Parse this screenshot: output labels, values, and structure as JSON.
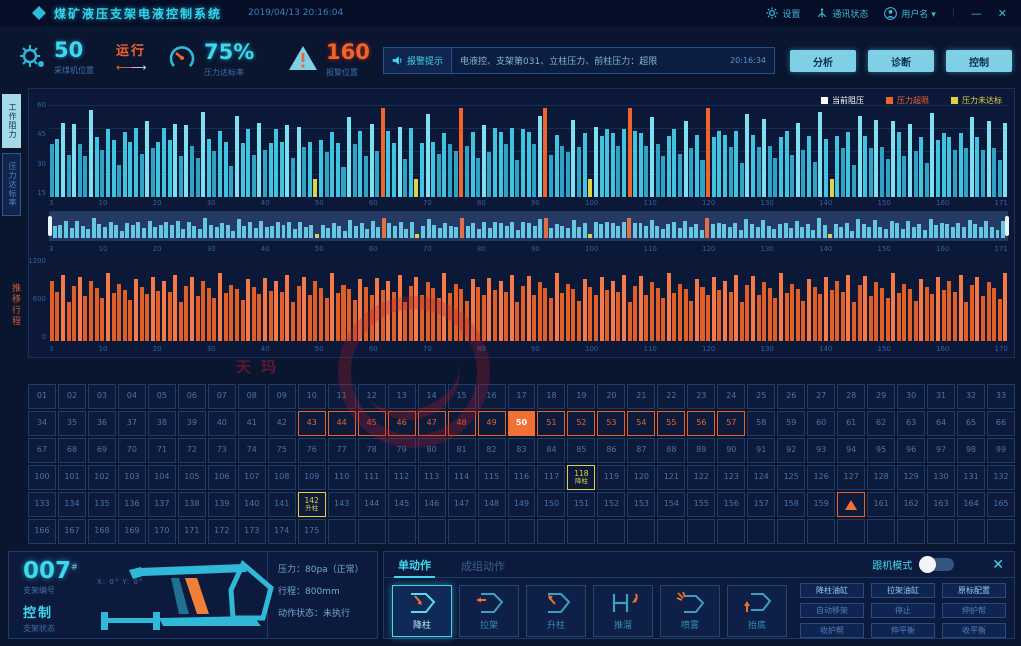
{
  "header": {
    "title": "煤矿液压支架电液控制系统",
    "datetime": "2019/04/13 20:16:04",
    "settings_label": "设置",
    "comm_label": "通讯状态",
    "user_label": "用户名 ▾",
    "minimize_glyph": "—",
    "close_glyph": "✕"
  },
  "kpi": {
    "shearer": {
      "value": "50",
      "label": "采煤机位置",
      "status": "运行"
    },
    "pressure_rate": {
      "value": "75%",
      "label": "压力达标率"
    },
    "alarm": {
      "value": "160",
      "label": "报警位置"
    }
  },
  "alarm_bar": {
    "tag": "报警提示",
    "message": "电液控、支架第031、立柱压力、前柱压力：超限",
    "time": "20:16:34"
  },
  "nav_buttons": [
    {
      "label": "分析"
    },
    {
      "label": "诊断"
    },
    {
      "label": "控制"
    }
  ],
  "side_tabs": [
    {
      "label": "工作阻力"
    },
    {
      "label": "压力达标率"
    }
  ],
  "legend": [
    {
      "label": "当前阻压",
      "color": "#ffffff"
    },
    {
      "label": "压力超限",
      "color": "#f0632a"
    },
    {
      "label": "压力未达标",
      "color": "#e0d244"
    }
  ],
  "chart_data": [
    {
      "type": "bar",
      "title": "工作阻力",
      "count": 171,
      "x_ticks": [
        "3",
        "10",
        "20",
        "30",
        "40",
        "50",
        "60",
        "70",
        "80",
        "90",
        "100",
        "110",
        "120",
        "130",
        "140",
        "150",
        "160",
        "171"
      ],
      "y_ticks": [
        "60",
        "45",
        "30",
        "15"
      ],
      "ylim": [
        0,
        68
      ],
      "values_pattern": [
        45,
        38,
        52,
        30,
        55,
        42,
        35,
        58,
        40,
        33,
        50,
        44,
        28,
        54,
        36,
        48,
        31,
        57,
        39,
        46
      ],
      "over_limit_indices": [
        60,
        74,
        89,
        104,
        118
      ],
      "over_limit_value": 66,
      "under_indices": [
        48,
        66,
        97,
        140
      ],
      "under_value": 13,
      "bar_color": "#3fc3de",
      "over_color": "#f0632a",
      "under_color": "#e0d244",
      "legend_position": "top-right",
      "grid": true
    },
    {
      "type": "bar",
      "title": "推移行程",
      "count": 171,
      "x_ticks": [
        "3",
        "10",
        "20",
        "30",
        "40",
        "50",
        "60",
        "70",
        "80",
        "90",
        "100",
        "110",
        "120",
        "130",
        "140",
        "150",
        "160",
        "170"
      ],
      "y_ticks": [
        "1200",
        "600",
        "0"
      ],
      "ylim": [
        0,
        1300
      ],
      "values_pattern": [
        950,
        780,
        1050,
        620,
        880,
        1020,
        720,
        940,
        840,
        680,
        1080,
        760,
        900,
        820,
        640,
        980,
        860,
        740,
        1010,
        800
      ],
      "bar_color": "#f0632a",
      "grid": false
    }
  ],
  "stroke_axis_label": "推移行程",
  "watermark": {
    "text": "天玛"
  },
  "grid": {
    "total_numbered": 175,
    "columns": 33,
    "rows": 6,
    "alarm_range_start": 43,
    "alarm_range_end": 57,
    "solid_cell": 50,
    "yellow_cells": [
      {
        "num": 118,
        "action": "降柱"
      },
      {
        "num": 142,
        "action": "升柱"
      }
    ],
    "warning_cell": 160
  },
  "support_panel": {
    "id": "007",
    "id_suffix": "#",
    "id_label": "支架编号",
    "state": "控制",
    "state_label": "支架状态",
    "angles": "X: 0°    Y: 0°",
    "pressure": "压力：80pa（正常）",
    "stroke": "行程：800mm",
    "action_state": "动作状态：未执行"
  },
  "control_panel": {
    "tabs": [
      {
        "label": "单动作"
      },
      {
        "label": "成组动作"
      }
    ],
    "follow_mode_label": "跟机模式",
    "close_glyph": "✕",
    "actions": [
      {
        "label": "降柱"
      },
      {
        "label": "拉架"
      },
      {
        "label": "升柱"
      },
      {
        "label": "推溜"
      },
      {
        "label": "喷雾"
      },
      {
        "label": "抬底"
      }
    ],
    "aux_buttons": [
      [
        "降柱油缸",
        "拉架油缸",
        "原标配置"
      ],
      [
        "自动移架",
        "停止",
        "伸护帮"
      ],
      [
        "收护帮",
        "伸平衡",
        "收平衡"
      ]
    ]
  }
}
